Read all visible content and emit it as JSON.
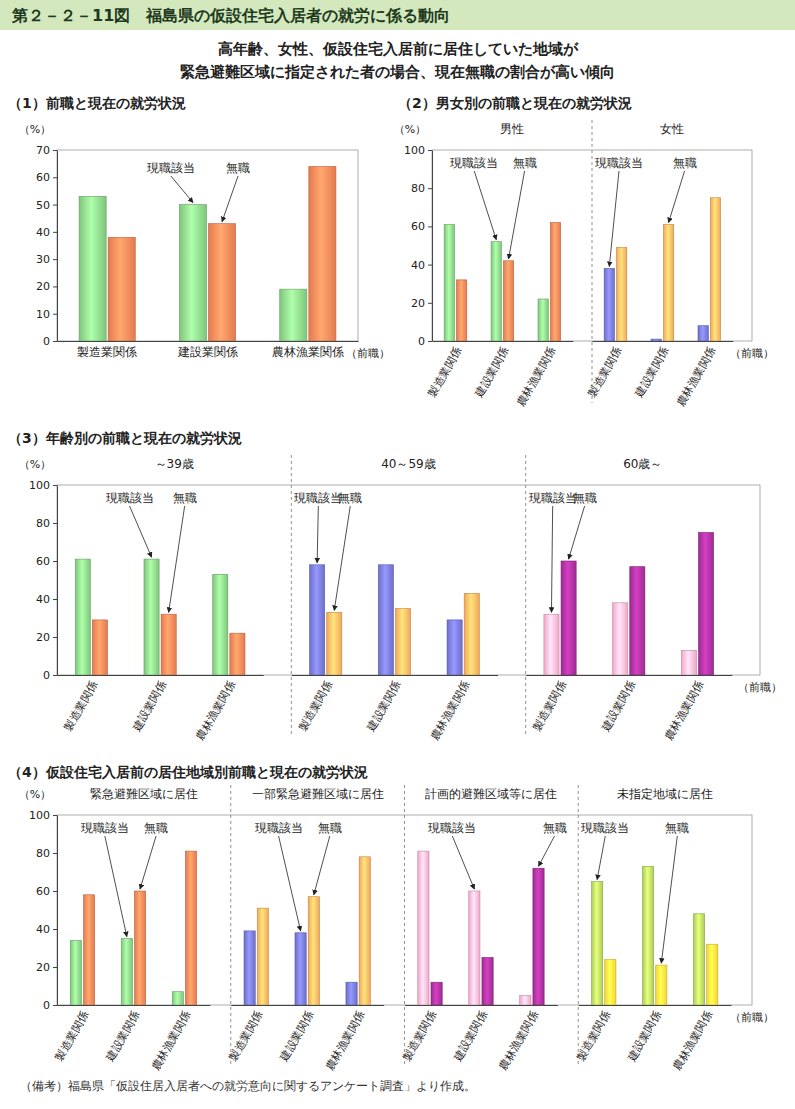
{
  "header": {
    "title": "第２－２－11図　福島県の仮設住宅入居者の就労に係る動向",
    "subtitle": [
      "高年齢、女性、仮設住宅入居前に居住していた地域が",
      "緊急避難区域に指定された者の場合、現在無職の割合が高い傾向"
    ]
  },
  "note": "（備考）福島県「仮設住居入居者への就労意向に関するアンケート調査」より作成。",
  "chart_data": [
    {
      "type": "bar",
      "title": "（1）前職と現在の就労状況",
      "y_label": "（%）",
      "x_label": "（前職）",
      "categories": [
        "製造業関係",
        "建設業関係",
        "農林漁業関係"
      ],
      "ylim": [
        0,
        70
      ],
      "yticks": [
        0,
        10,
        20,
        30,
        40,
        50,
        60,
        70
      ],
      "groups": [
        {
          "series": [
            {
              "name": "現職該当",
              "color": "#7fc57c",
              "values": [
                53,
                50,
                19
              ]
            },
            {
              "name": "無職",
              "color": "#e57a50",
              "values": [
                38,
                43,
                64
              ]
            }
          ],
          "annotations": [
            {
              "text": "現職該当",
              "category": "建設業関係"
            },
            {
              "text": "無職",
              "category": "建設業関係"
            }
          ]
        }
      ]
    },
    {
      "type": "bar",
      "title": "（2）男女別の前職と現在の就労状況",
      "y_label": "（%）",
      "x_label": "（前職）",
      "categories": [
        "製造業関係",
        "建設業関係",
        "農林漁業関係"
      ],
      "ylim": [
        0,
        100
      ],
      "yticks": [
        0,
        20,
        40,
        60,
        80,
        100
      ],
      "groups": [
        {
          "name": "男性",
          "series": [
            {
              "name": "現職該当",
              "color": "#7fc57c",
              "values": [
                61,
                52,
                22
              ]
            },
            {
              "name": "無職",
              "color": "#e57a50",
              "values": [
                32,
                42,
                62
              ]
            }
          ],
          "annotations": [
            {
              "text": "現職該当",
              "category": "建設業関係"
            },
            {
              "text": "無職",
              "category": "建設業関係"
            }
          ]
        },
        {
          "name": "女性",
          "series": [
            {
              "name": "現職該当",
              "color": "#6d6fc9",
              "values": [
                38,
                1,
                8
              ]
            },
            {
              "name": "無職",
              "color": "#f2a65a",
              "values": [
                49,
                61,
                75
              ]
            }
          ],
          "annotations": [
            {
              "text": "現職該当",
              "category": "製造業関係"
            },
            {
              "text": "無職",
              "category": "建設業関係"
            }
          ]
        }
      ]
    },
    {
      "type": "bar",
      "title": "（3）年齢別の前職と現在の就労状況",
      "y_label": "（%）",
      "x_label": "（前職）",
      "categories": [
        "製造業関係",
        "建設業関係",
        "農林漁業関係"
      ],
      "ylim": [
        0,
        100
      ],
      "yticks": [
        0,
        20,
        40,
        60,
        80,
        100
      ],
      "groups": [
        {
          "name": "～39歳",
          "series": [
            {
              "name": "現職該当",
              "color": "#7fc57c",
              "values": [
                61,
                61,
                53
              ]
            },
            {
              "name": "無職",
              "color": "#e57a50",
              "values": [
                29,
                32,
                22
              ]
            }
          ],
          "annotations": [
            {
              "text": "現職該当",
              "category": "建設業関係"
            },
            {
              "text": "無職",
              "category": "建設業関係"
            }
          ]
        },
        {
          "name": "40～59歳",
          "series": [
            {
              "name": "現職該当",
              "color": "#6d6fc9",
              "values": [
                58,
                58,
                29
              ]
            },
            {
              "name": "無職",
              "color": "#f2a65a",
              "values": [
                33,
                35,
                43
              ]
            }
          ],
          "annotations": [
            {
              "text": "現職該当",
              "category": "製造業関係"
            },
            {
              "text": "無職",
              "category": "製造業関係"
            }
          ]
        },
        {
          "name": "60歳～",
          "series": [
            {
              "name": "現職該当",
              "color": "#f2a7c3",
              "values": [
                32,
                38,
                13
              ]
            },
            {
              "name": "無職",
              "color": "#9b2d8f",
              "values": [
                60,
                57,
                75
              ]
            }
          ],
          "annotations": [
            {
              "text": "現職該当",
              "category": "製造業関係"
            },
            {
              "text": "無職",
              "category": "製造業関係"
            }
          ]
        }
      ]
    },
    {
      "type": "bar",
      "title": "（4）仮設住宅入居前の居住地域別前職と現在の就労状況",
      "y_label": "（%）",
      "x_label": "（前職）",
      "categories": [
        "製造業関係",
        "建設業関係",
        "農林漁業関係"
      ],
      "ylim": [
        0,
        100
      ],
      "yticks": [
        0,
        20,
        40,
        60,
        80,
        100
      ],
      "groups": [
        {
          "name": "緊急避難区域に居住",
          "series": [
            {
              "name": "現職該当",
              "color": "#7fc57c",
              "values": [
                34,
                35,
                7
              ]
            },
            {
              "name": "無職",
              "color": "#e57a50",
              "values": [
                58,
                60,
                81
              ]
            }
          ],
          "annotations": [
            {
              "text": "現職該当",
              "category": "建設業関係"
            },
            {
              "text": "無職",
              "category": "建設業関係"
            }
          ]
        },
        {
          "name": "一部緊急避難区域に居住",
          "series": [
            {
              "name": "現職該当",
              "color": "#6d6fc9",
              "values": [
                39,
                38,
                12
              ]
            },
            {
              "name": "無職",
              "color": "#f2a65a",
              "values": [
                51,
                57,
                78
              ]
            }
          ],
          "annotations": [
            {
              "text": "現職該当",
              "category": "建設業関係"
            },
            {
              "text": "無職",
              "category": "建設業関係"
            }
          ]
        },
        {
          "name": "計画的避難区域等に居住",
          "series": [
            {
              "name": "現職該当",
              "color": "#f2a7c3",
              "values": [
                81,
                60,
                5
              ]
            },
            {
              "name": "無職",
              "color": "#9b2d8f",
              "values": [
                12,
                25,
                72
              ]
            }
          ],
          "annotations": [
            {
              "text": "現職該当",
              "category": "建設業関係"
            },
            {
              "text": "無職",
              "category": "農林漁業関係"
            }
          ]
        },
        {
          "name": "未指定地域に居住",
          "series": [
            {
              "name": "現職該当",
              "color": "#a9cc5a",
              "values": [
                65,
                73,
                48
              ]
            },
            {
              "name": "無職",
              "color": "#f3d43a",
              "values": [
                24,
                21,
                32
              ]
            }
          ],
          "annotations": [
            {
              "text": "現職該当",
              "category": "製造業関係"
            },
            {
              "text": "無職",
              "category": "建設業関係"
            }
          ]
        }
      ]
    }
  ]
}
